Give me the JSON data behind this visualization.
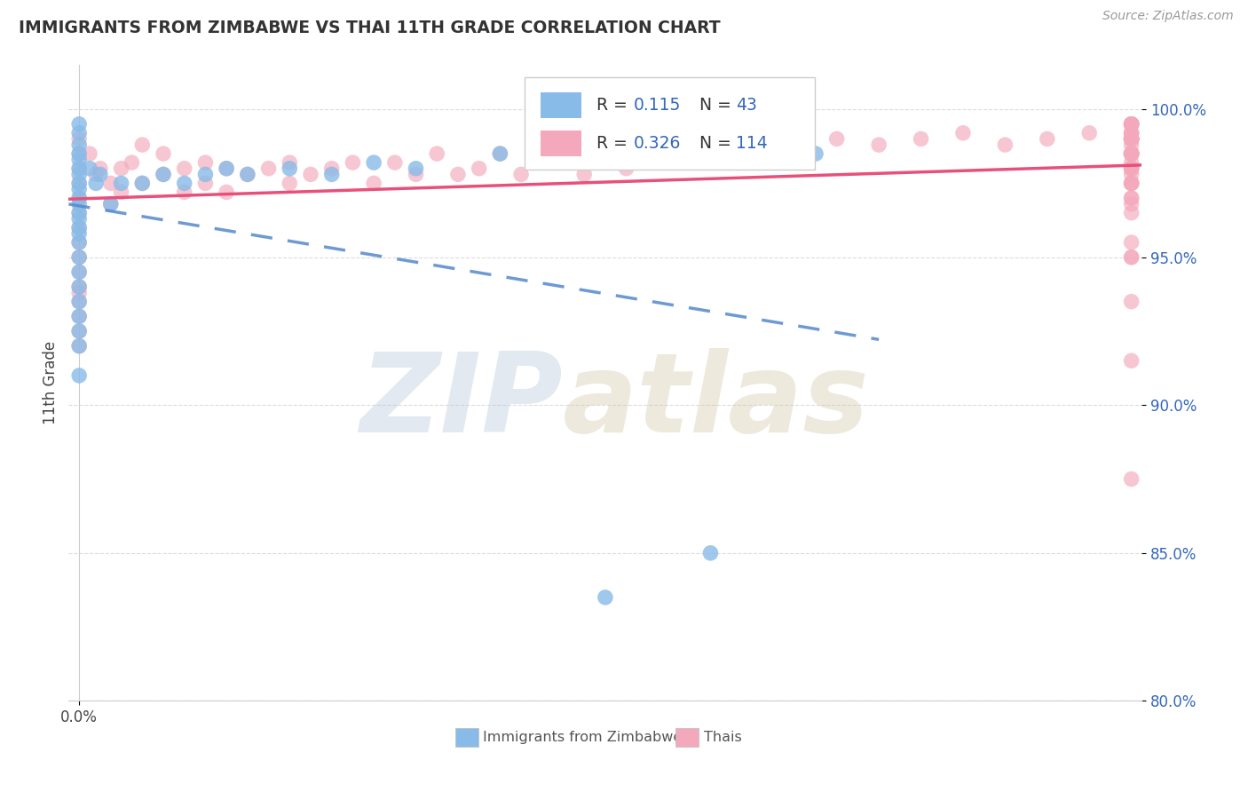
{
  "title": "IMMIGRANTS FROM ZIMBABWE VS THAI 11TH GRADE CORRELATION CHART",
  "source": "Source: ZipAtlas.com",
  "ylabel": "11th Grade",
  "legend_label1": "Immigrants from Zimbabwe",
  "legend_label2": "Thais",
  "color_blue": "#88BBE8",
  "color_pink": "#F4A8BC",
  "color_blue_line": "#5588CC",
  "color_pink_line": "#E8507A",
  "color_text_blue": "#3366BB",
  "background": "#FFFFFF",
  "r1": "0.115",
  "n1": "43",
  "r2": "0.326",
  "n2": "114",
  "xlim": [
    0.0,
    0.5
  ],
  "ylim": [
    80.0,
    101.5
  ],
  "yticks": [
    80.0,
    85.0,
    90.0,
    95.0,
    100.0
  ],
  "zimb_x": [
    0.0,
    0.0,
    0.0,
    0.0,
    0.0,
    0.0,
    0.0,
    0.0,
    0.0,
    0.0,
    0.0,
    0.0,
    0.0,
    0.0,
    0.0,
    0.0,
    0.0,
    0.0,
    0.0,
    0.0,
    0.0,
    0.0,
    0.0,
    0.0,
    0.005,
    0.008,
    0.01,
    0.015,
    0.02,
    0.03,
    0.04,
    0.05,
    0.06,
    0.07,
    0.08,
    0.1,
    0.12,
    0.14,
    0.16,
    0.2,
    0.25,
    0.3,
    0.35
  ],
  "zimb_y": [
    99.5,
    99.2,
    98.8,
    98.5,
    98.3,
    98.0,
    97.8,
    97.5,
    97.3,
    97.0,
    96.8,
    96.5,
    96.3,
    96.0,
    95.8,
    95.5,
    95.0,
    94.5,
    94.0,
    93.5,
    93.0,
    92.5,
    92.0,
    91.0,
    98.0,
    97.5,
    97.8,
    96.8,
    97.5,
    97.5,
    97.8,
    97.5,
    97.8,
    98.0,
    97.8,
    98.0,
    97.8,
    98.2,
    98.0,
    98.5,
    83.5,
    85.0,
    98.5
  ],
  "thai_x": [
    0.0,
    0.0,
    0.0,
    0.0,
    0.0,
    0.0,
    0.0,
    0.0,
    0.0,
    0.0,
    0.0,
    0.0,
    0.0,
    0.0,
    0.0,
    0.0,
    0.005,
    0.008,
    0.01,
    0.015,
    0.015,
    0.02,
    0.02,
    0.025,
    0.03,
    0.03,
    0.04,
    0.04,
    0.05,
    0.05,
    0.06,
    0.06,
    0.07,
    0.07,
    0.08,
    0.09,
    0.1,
    0.1,
    0.11,
    0.12,
    0.13,
    0.14,
    0.15,
    0.16,
    0.17,
    0.18,
    0.19,
    0.2,
    0.21,
    0.22,
    0.23,
    0.24,
    0.25,
    0.26,
    0.27,
    0.28,
    0.3,
    0.32,
    0.34,
    0.36,
    0.38,
    0.4,
    0.42,
    0.44,
    0.46,
    0.48,
    0.5,
    0.5,
    0.5,
    0.5,
    0.5,
    0.5,
    0.5,
    0.5,
    0.5,
    0.5,
    0.5,
    0.5,
    0.5,
    0.5,
    0.5,
    0.5,
    0.5,
    0.5,
    0.5,
    0.5,
    0.5,
    0.5,
    0.5,
    0.5,
    0.5,
    0.5,
    0.5,
    0.5,
    0.5,
    0.5,
    0.5,
    0.5,
    0.5,
    0.5,
    0.5,
    0.5,
    0.5,
    0.5,
    0.5,
    0.5,
    0.5,
    0.5,
    0.5,
    0.5,
    0.5,
    0.5,
    0.5,
    0.5
  ],
  "thai_y": [
    99.0,
    98.5,
    98.0,
    97.5,
    97.0,
    96.5,
    96.0,
    95.5,
    95.0,
    94.5,
    94.0,
    93.8,
    93.5,
    93.0,
    92.5,
    92.0,
    98.5,
    97.8,
    98.0,
    97.5,
    96.8,
    98.0,
    97.2,
    98.2,
    97.5,
    98.8,
    97.8,
    98.5,
    98.0,
    97.2,
    98.2,
    97.5,
    98.0,
    97.2,
    97.8,
    98.0,
    97.5,
    98.2,
    97.8,
    98.0,
    98.2,
    97.5,
    98.2,
    97.8,
    98.5,
    97.8,
    98.0,
    98.5,
    97.8,
    98.2,
    98.5,
    97.8,
    98.5,
    98.0,
    98.5,
    98.8,
    99.0,
    98.8,
    98.5,
    99.0,
    98.8,
    99.0,
    99.2,
    98.8,
    99.0,
    99.2,
    99.5,
    99.0,
    98.5,
    99.0,
    98.0,
    99.5,
    97.8,
    99.0,
    98.2,
    99.2,
    97.5,
    98.8,
    99.0,
    99.5,
    98.5,
    99.2,
    87.5,
    93.5,
    97.5,
    99.0,
    96.5,
    98.5,
    95.0,
    98.0,
    99.0,
    99.5,
    98.5,
    98.0,
    97.5,
    97.0,
    96.8,
    98.5,
    97.0,
    98.5,
    99.0,
    99.5,
    97.5,
    91.5,
    98.5,
    99.0,
    98.5,
    95.5,
    99.5,
    98.0,
    99.0,
    95.0,
    98.5,
    99.2
  ]
}
